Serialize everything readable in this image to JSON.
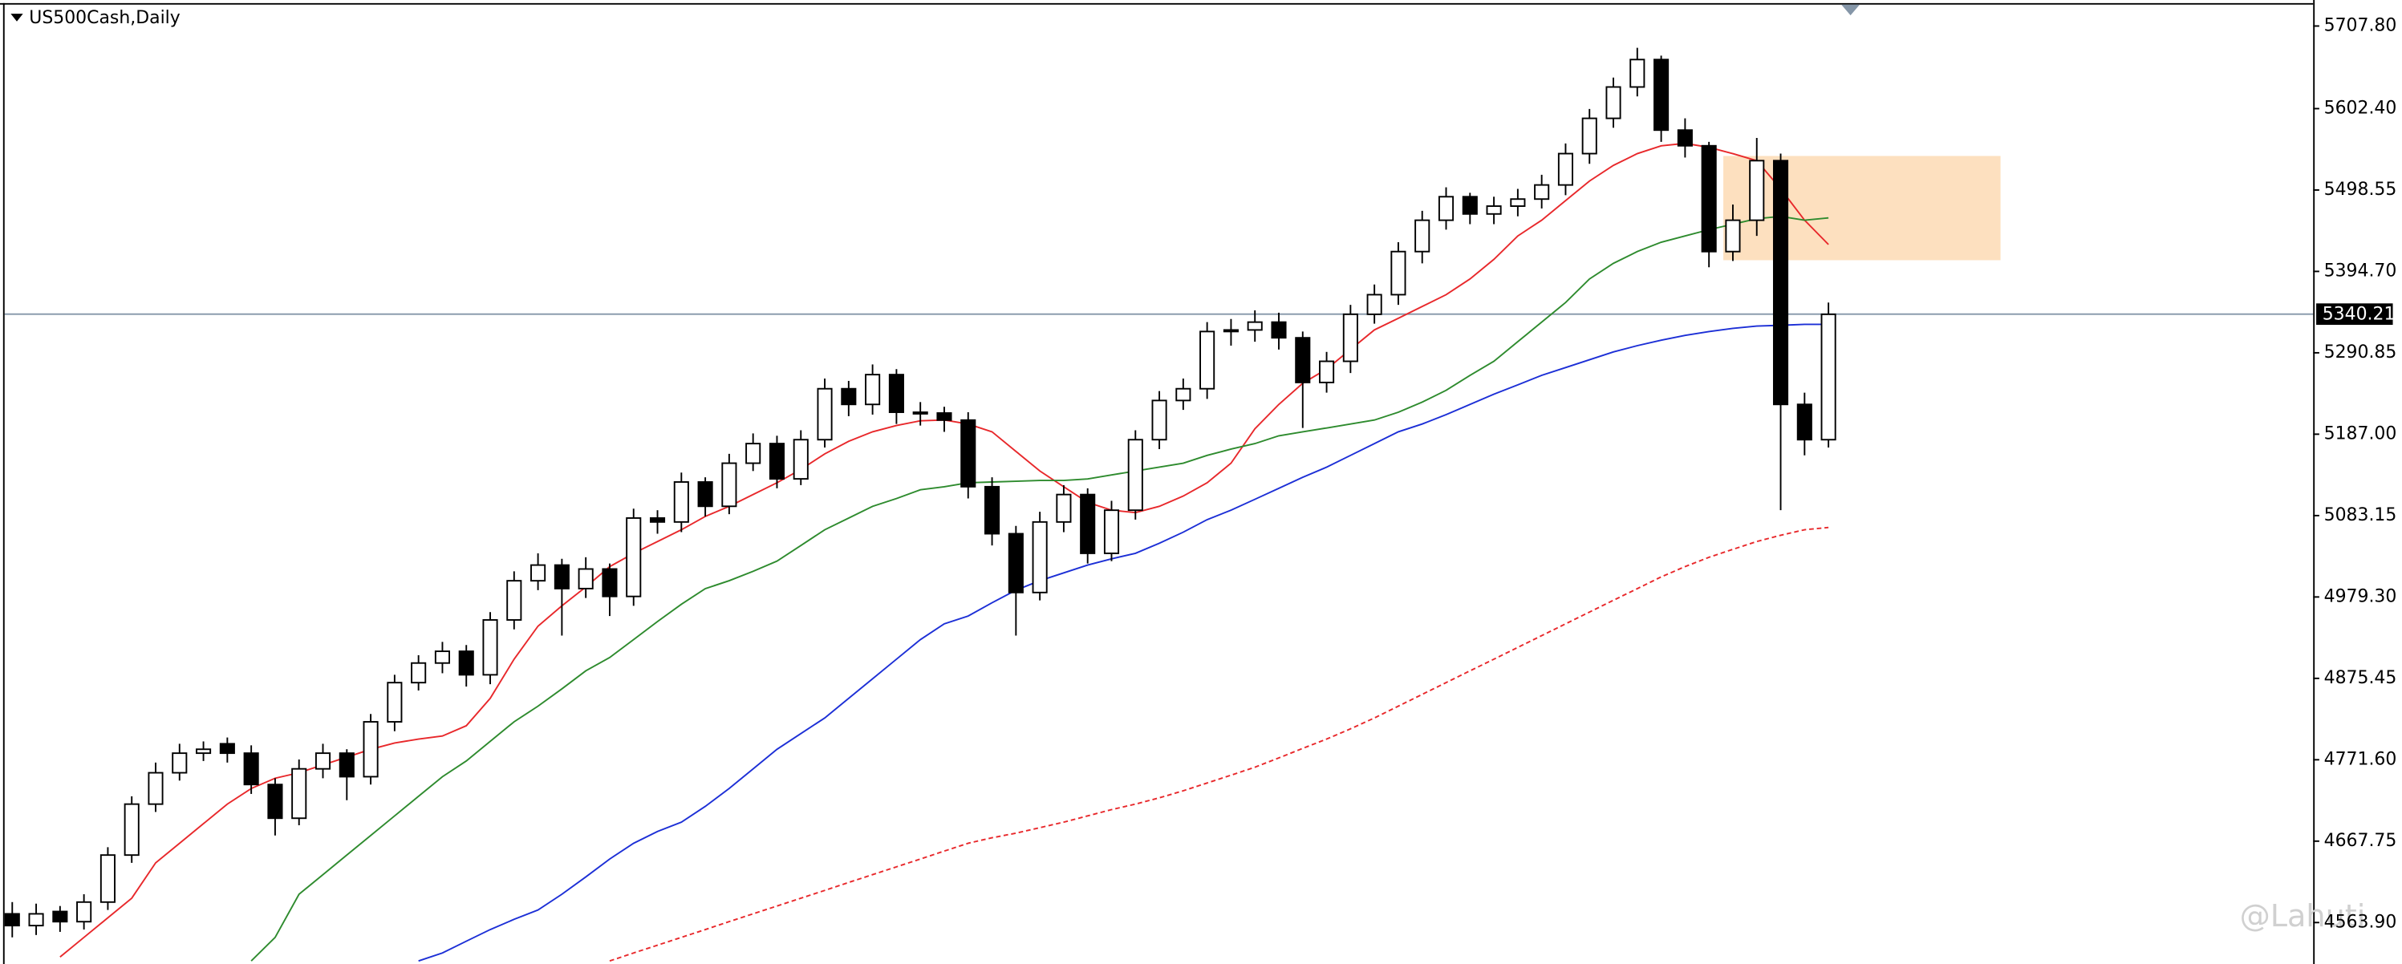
{
  "chart_data": {
    "type": "candlestick",
    "title": "US500Cash,Daily",
    "open": [
      4575,
      4560,
      4578,
      4565,
      4590,
      4650,
      4715,
      4755,
      4780,
      4792,
      4780,
      4740,
      4697,
      4760,
      4780,
      4750,
      4820,
      4870,
      4895,
      4910,
      4880,
      4950,
      5000,
      5020,
      4990,
      5015,
      4980,
      5080,
      5075,
      5126,
      5095,
      5150,
      5175,
      5130,
      5180,
      5245,
      5225,
      5263,
      5215,
      5214,
      5205,
      5120,
      5060,
      4985,
      5075,
      5110,
      5035,
      5090,
      5180,
      5230,
      5245,
      5318,
      5320,
      5330,
      5310,
      5253,
      5280,
      5340,
      5365,
      5420,
      5460,
      5490,
      5468,
      5478,
      5487,
      5505,
      5545,
      5590,
      5630,
      5665,
      5575,
      5555,
      5420,
      5460,
      5536,
      5225,
      5180
    ],
    "high": [
      4590,
      4588,
      4585,
      4600,
      4660,
      4725,
      4768,
      4792,
      4795,
      4800,
      4790,
      4748,
      4772,
      4792,
      4785,
      4830,
      4880,
      4905,
      4922,
      4918,
      4960,
      5012,
      5035,
      5028,
      5030,
      5022,
      5092,
      5090,
      5138,
      5132,
      5162,
      5188,
      5185,
      5192,
      5258,
      5255,
      5276,
      5270,
      5228,
      5222,
      5215,
      5132,
      5070,
      5088,
      5122,
      5118,
      5102,
      5192,
      5242,
      5258,
      5330,
      5334,
      5345,
      5342,
      5318,
      5292,
      5352,
      5378,
      5432,
      5472,
      5502,
      5495,
      5490,
      5500,
      5518,
      5558,
      5602,
      5642,
      5680,
      5670,
      5590,
      5560,
      5480,
      5565,
      5545,
      5240,
      5355
    ],
    "low": [
      4545,
      4548,
      4552,
      4555,
      4580,
      4640,
      4705,
      4745,
      4770,
      4768,
      4728,
      4675,
      4688,
      4748,
      4720,
      4740,
      4808,
      4860,
      4882,
      4865,
      4868,
      4938,
      4988,
      4930,
      4978,
      4955,
      4968,
      5060,
      5062,
      5082,
      5085,
      5140,
      5118,
      5122,
      5170,
      5210,
      5212,
      5200,
      5198,
      5190,
      5105,
      5045,
      4930,
      4975,
      5062,
      5022,
      5025,
      5078,
      5168,
      5218,
      5232,
      5300,
      5305,
      5295,
      5195,
      5240,
      5265,
      5328,
      5352,
      5405,
      5448,
      5455,
      5455,
      5465,
      5475,
      5492,
      5532,
      5578,
      5618,
      5560,
      5540,
      5400,
      5408,
      5440,
      5090,
      5160,
      5170
    ],
    "close": [
      4560,
      4575,
      4565,
      4590,
      4650,
      4715,
      4755,
      4780,
      4785,
      4780,
      4740,
      4697,
      4760,
      4780,
      4750,
      4820,
      4870,
      4895,
      4910,
      4880,
      4950,
      5000,
      5020,
      4990,
      5015,
      4980,
      5080,
      5075,
      5126,
      5095,
      5150,
      5175,
      5130,
      5180,
      5245,
      5225,
      5263,
      5215,
      5214,
      5205,
      5120,
      5060,
      4985,
      5075,
      5110,
      5035,
      5090,
      5180,
      5230,
      5245,
      5318,
      5320,
      5330,
      5310,
      5253,
      5280,
      5340,
      5365,
      5420,
      5460,
      5490,
      5468,
      5478,
      5487,
      5505,
      5545,
      5590,
      5630,
      5665,
      5575,
      5555,
      5420,
      5460,
      5536,
      5225,
      5180,
      5340
    ],
    "bull_color": "#ffffff",
    "bear_color": "#000000",
    "series": [
      {
        "color": "#e8282b",
        "dashed": false,
        "values": [
          null,
          null,
          4520,
          4545,
          4570,
          4595,
          4640,
          4665,
          4690,
          4715,
          4735,
          4748,
          4755,
          4765,
          4775,
          4785,
          4793,
          4798,
          4802,
          4815,
          4850,
          4900,
          4942,
          4968,
          4992,
          5018,
          5035,
          5050,
          5065,
          5082,
          5095,
          5110,
          5125,
          5142,
          5162,
          5178,
          5190,
          5198,
          5204,
          5205,
          5200,
          5190,
          5165,
          5140,
          5120,
          5100,
          5090,
          5087,
          5095,
          5108,
          5125,
          5150,
          5194,
          5225,
          5252,
          5270,
          5295,
          5320,
          5335,
          5350,
          5365,
          5385,
          5410,
          5440,
          5460,
          5485,
          5510,
          5530,
          5545,
          5555,
          5558,
          5553,
          5545,
          5536,
          5500,
          5460,
          5429
        ]
      },
      {
        "color": "#2e8b2e",
        "dashed": false,
        "values": [
          null,
          null,
          null,
          null,
          null,
          null,
          null,
          null,
          null,
          null,
          4515,
          4545,
          4600,
          4625,
          4650,
          4675,
          4700,
          4725,
          4750,
          4770,
          4795,
          4820,
          4840,
          4862,
          4885,
          4902,
          4925,
          4948,
          4970,
          4990,
          5000,
          5012,
          5025,
          5045,
          5065,
          5080,
          5095,
          5105,
          5116,
          5120,
          5125,
          5126,
          5127,
          5128,
          5128,
          5130,
          5135,
          5140,
          5145,
          5150,
          5160,
          5168,
          5175,
          5185,
          5190,
          5195,
          5200,
          5205,
          5215,
          5228,
          5243,
          5262,
          5280,
          5305,
          5330,
          5355,
          5385,
          5405,
          5420,
          5432,
          5440,
          5448,
          5455,
          5462,
          5465,
          5460,
          5463
        ]
      },
      {
        "color": "#1c2fd6",
        "dashed": false,
        "values": [
          null,
          null,
          null,
          null,
          null,
          null,
          null,
          null,
          null,
          null,
          null,
          null,
          null,
          null,
          null,
          null,
          null,
          4515,
          4525,
          4540,
          4555,
          4568,
          4580,
          4600,
          4622,
          4645,
          4665,
          4680,
          4692,
          4712,
          4735,
          4760,
          4785,
          4805,
          4825,
          4850,
          4875,
          4900,
          4925,
          4945,
          4955,
          4972,
          4988,
          5000,
          5010,
          5020,
          5028,
          5035,
          5048,
          5062,
          5078,
          5090,
          5104,
          5118,
          5132,
          5145,
          5160,
          5175,
          5190,
          5200,
          5212,
          5225,
          5238,
          5250,
          5262,
          5272,
          5282,
          5292,
          5300,
          5307,
          5313,
          5318,
          5322,
          5325,
          5326,
          5327,
          5327
        ]
      },
      {
        "color": "#e8282b",
        "dashed": true,
        "values": [
          null,
          null,
          null,
          null,
          null,
          null,
          null,
          null,
          null,
          null,
          null,
          null,
          null,
          null,
          null,
          null,
          null,
          null,
          null,
          null,
          null,
          null,
          null,
          null,
          null,
          4515,
          4525,
          4535,
          4545,
          4555,
          4565,
          4575,
          4585,
          4595,
          4605,
          4615,
          4625,
          4635,
          4645,
          4655,
          4665,
          4672,
          4678,
          4685,
          4692,
          4700,
          4708,
          4715,
          4723,
          4732,
          4742,
          4752,
          4762,
          4774,
          4786,
          4798,
          4811,
          4825,
          4840,
          4855,
          4870,
          4885,
          4900,
          4915,
          4930,
          4945,
          4960,
          4975,
          4990,
          5005,
          5018,
          5030,
          5040,
          5050,
          5058,
          5065,
          5068
        ]
      }
    ],
    "zone": {
      "high": 5542,
      "low": 5409,
      "start": 71.6,
      "end": 83.2,
      "color": "#fde0bf"
    },
    "last_price": 5340.21,
    "last_price_color": "#8596a8",
    "ylim": [
      4511,
      5741
    ],
    "yticks": [
      {
        "value": 5707.8,
        "label": "5707.80"
      },
      {
        "value": 5602.4,
        "label": "5602.40"
      },
      5498.55,
      {
        "value": 5394.7,
        "label": "5394.70"
      },
      5290.85,
      {
        "value": 5187,
        "label": "5187.00"
      },
      5083.15,
      {
        "value": 4979.3,
        "label": "4979.30"
      },
      4875.45,
      {
        "value": 4771.6,
        "label": "4771.60"
      },
      4667.75,
      {
        "value": 4563.9,
        "label": "4563.90"
      }
    ],
    "watermark": "@Lahuti"
  }
}
